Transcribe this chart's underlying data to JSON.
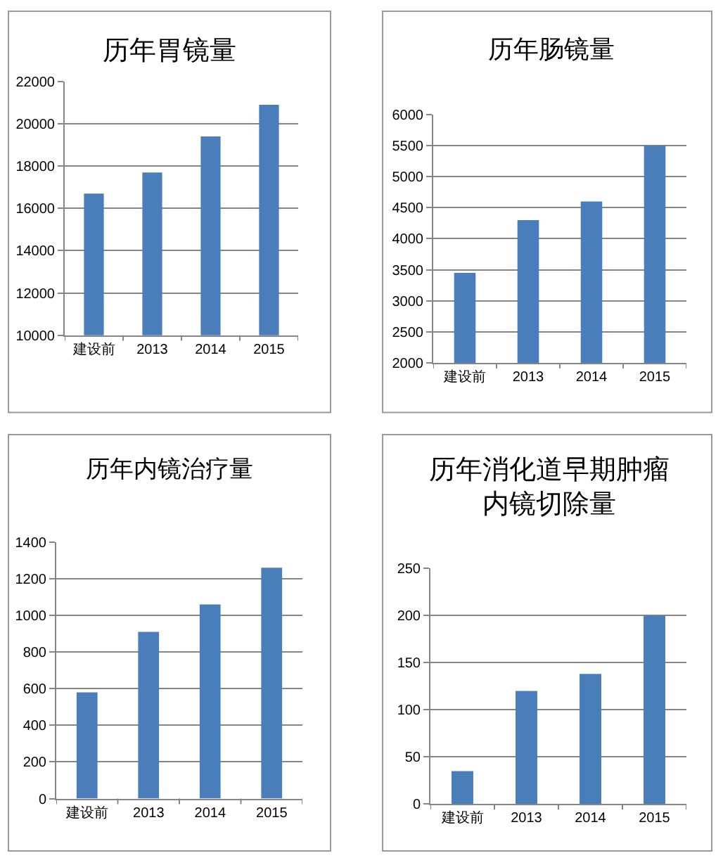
{
  "chart_data": [
    {
      "type": "bar",
      "title": "历年胃镜量",
      "categories": [
        "建设前",
        "2013",
        "2014",
        "2015"
      ],
      "values": [
        16700,
        17700,
        19400,
        20900
      ],
      "color": "#4a7ebb",
      "ylim": [
        10000,
        22000
      ],
      "yticks": [
        10000,
        12000,
        14000,
        16000,
        18000,
        20000,
        22000
      ],
      "grid": "y"
    },
    {
      "type": "bar",
      "title": "历年肠镜量",
      "categories": [
        "建设前",
        "2013",
        "2014",
        "2015"
      ],
      "values": [
        3450,
        4300,
        4600,
        5500
      ],
      "color": "#4a7ebb",
      "ylim": [
        2000,
        6000
      ],
      "yticks": [
        2000,
        2500,
        3000,
        3500,
        4000,
        4500,
        5000,
        5500,
        6000
      ],
      "grid": "y"
    },
    {
      "type": "bar",
      "title": "历年内镜治疗量",
      "categories": [
        "建设前",
        "2013",
        "2014",
        "2015"
      ],
      "values": [
        580,
        910,
        1060,
        1260
      ],
      "color": "#4a7ebb",
      "ylim": [
        0,
        1400
      ],
      "yticks": [
        0,
        200,
        400,
        600,
        800,
        1000,
        1200,
        1400
      ],
      "grid": "y"
    },
    {
      "type": "bar",
      "title": "历年消化道早期肿瘤内镜切除量",
      "categories": [
        "建设前",
        "2013",
        "2014",
        "2015"
      ],
      "values": [
        35,
        120,
        138,
        200
      ],
      "color": "#4a7ebb",
      "ylim": [
        0,
        250
      ],
      "yticks": [
        0,
        50,
        100,
        150,
        200,
        250
      ],
      "grid": "y"
    }
  ]
}
